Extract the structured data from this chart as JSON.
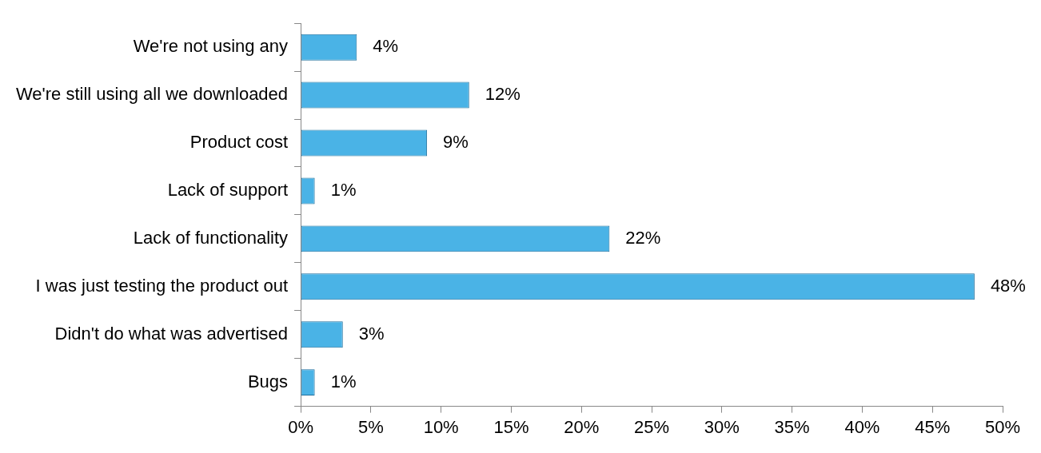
{
  "chart_data": {
    "type": "bar",
    "orientation": "horizontal",
    "categories": [
      "We're not using any",
      "We're still using all we downloaded",
      "Product cost",
      "Lack of support",
      "Lack of functionality",
      "I was just testing the product out",
      "Didn't do what was advertised",
      "Bugs"
    ],
    "values": [
      4,
      12,
      9,
      1,
      22,
      48,
      3,
      1
    ],
    "value_labels": [
      "4%",
      "12%",
      "9%",
      "1%",
      "22%",
      "48%",
      "3%",
      "1%"
    ],
    "color": "#4ab3e6",
    "xlim": [
      0,
      50
    ],
    "xticks": [
      {
        "value": 0,
        "label": "0%"
      },
      {
        "value": 5,
        "label": "5%"
      },
      {
        "value": 10,
        "label": "10%"
      },
      {
        "value": 15,
        "label": "15%"
      },
      {
        "value": 20,
        "label": "20%"
      },
      {
        "value": 25,
        "label": "25%"
      },
      {
        "value": 30,
        "label": "30%"
      },
      {
        "value": 35,
        "label": "35%"
      },
      {
        "value": 40,
        "label": "40%"
      },
      {
        "value": 45,
        "label": "45%"
      },
      {
        "value": 50,
        "label": "50%"
      }
    ]
  }
}
